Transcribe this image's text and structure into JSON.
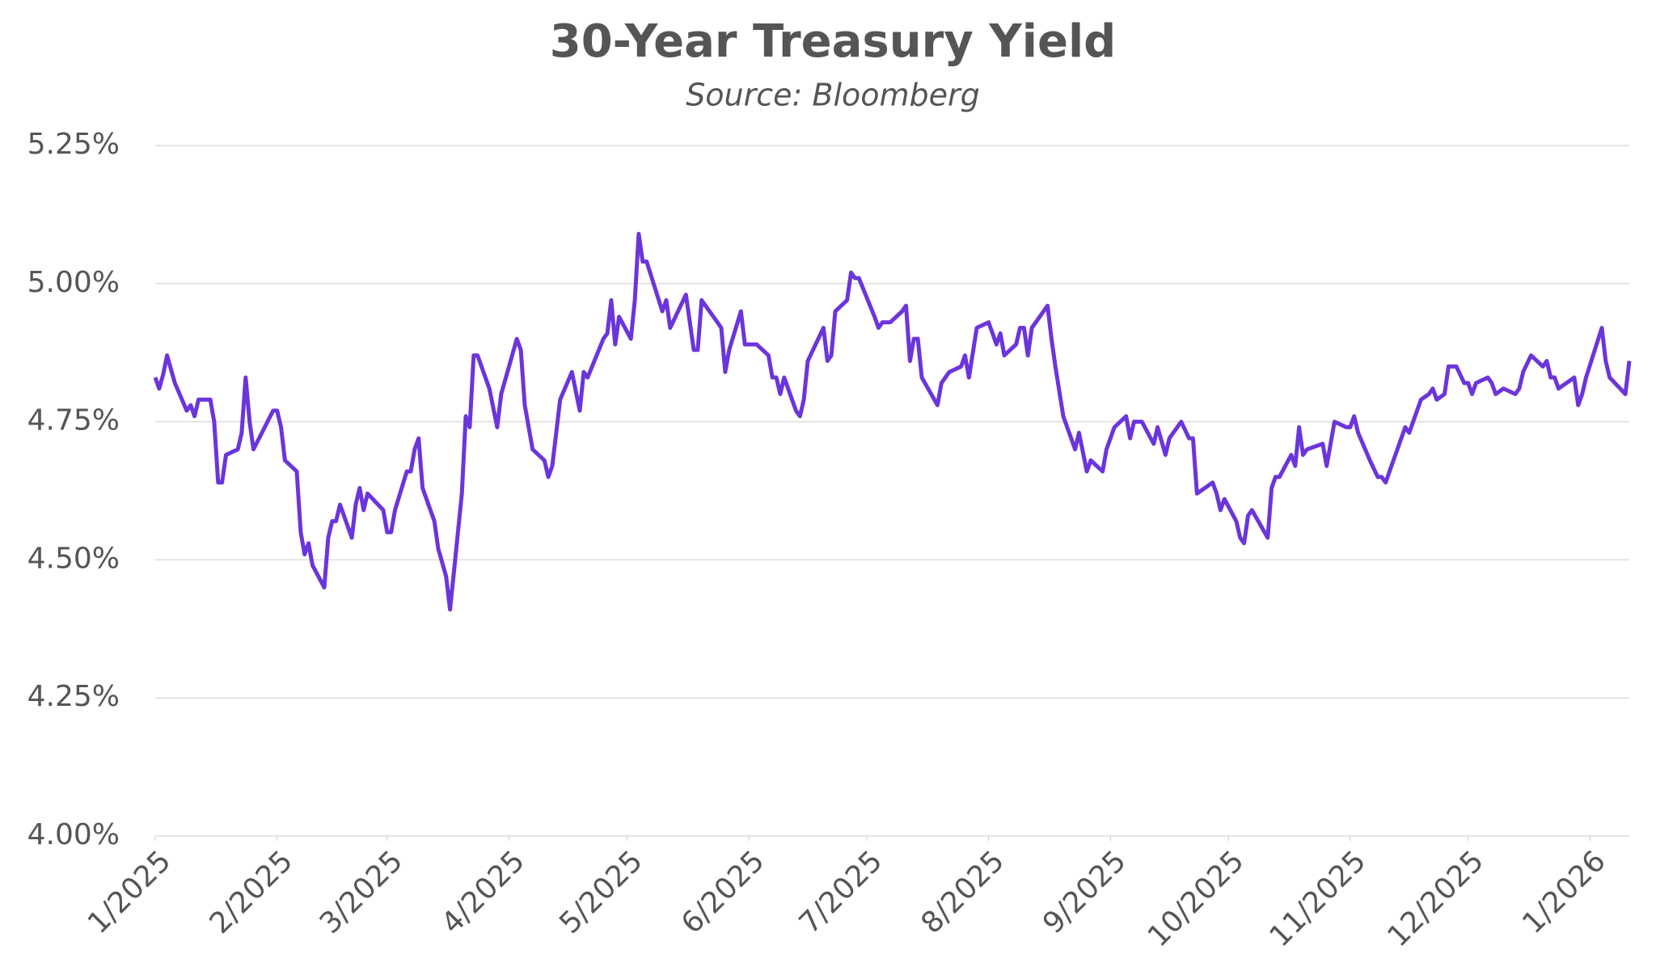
{
  "chart_data": {
    "type": "line",
    "title": "30-Year Treasury Yield",
    "subtitle": "Source: Bloomberg",
    "x": [
      0,
      1,
      2,
      3,
      5,
      8,
      9,
      10,
      11,
      14,
      15,
      16,
      17,
      18,
      21,
      22,
      23,
      24,
      25,
      30,
      31,
      32,
      33,
      36,
      37,
      38,
      39,
      40,
      43,
      44,
      45,
      46,
      47,
      50,
      51,
      52,
      53,
      54,
      58,
      59,
      60,
      61,
      64,
      65,
      66,
      67,
      68,
      71,
      72,
      74,
      75,
      76,
      78,
      79,
      80,
      81,
      82,
      85,
      87,
      88,
      92,
      93,
      94,
      96,
      99,
      100,
      101,
      102,
      103,
      106,
      108,
      109,
      110,
      114,
      115,
      116,
      117,
      118,
      121,
      122,
      123,
      124,
      125,
      129,
      130,
      131,
      135,
      137,
      138,
      139,
      143,
      144,
      145,
      146,
      149,
      150,
      153,
      156,
      157,
      158,
      159,
      160,
      163,
      164,
      165,
      166,
      170,
      171,
      172,
      173,
      176,
      177,
      178,
      179,
      183,
      184,
      185,
      187,
      190,
      191,
      192,
      193,
      194,
      195,
      199,
      200,
      201,
      202,
      205,
      206,
      207,
      209,
      212,
      213,
      214,
      215,
      216,
      219,
      220,
      221,
      222,
      223,
      227,
      228,
      229,
      231,
      233,
      234,
      235,
      237,
      238,
      241,
      242,
      244,
      247,
      248,
      249,
      251,
      254,
      255,
      257,
      258,
      261,
      263,
      264,
      265,
      269,
      270,
      271,
      272,
      275,
      276,
      277,
      278,
      279,
      283,
      284,
      285,
      286,
      289,
      290,
      291,
      292,
      293,
      297,
      298,
      300,
      303,
      304,
      305,
      306,
      309,
      311,
      312,
      313,
      317,
      318,
      319,
      322,
      324,
      325,
      326,
      328,
      329,
      331,
      333,
      334,
      335,
      336,
      339,
      340,
      341,
      343,
      346,
      347,
      348,
      350,
      353,
      354,
      355,
      356,
      357,
      361,
      362,
      363,
      364,
      368,
      369,
      370,
      374,
      375
    ],
    "series": [
      {
        "name": "30-Year Treasury Yield",
        "color": "#6b35dc",
        "values": [
          4.83,
          4.81,
          4.835,
          4.87,
          4.82,
          4.77,
          4.78,
          4.76,
          4.79,
          4.79,
          4.75,
          4.64,
          4.64,
          4.69,
          4.7,
          4.73,
          4.83,
          4.75,
          4.7,
          4.77,
          4.77,
          4.74,
          4.68,
          4.66,
          4.55,
          4.51,
          4.53,
          4.49,
          4.45,
          4.54,
          4.57,
          4.57,
          4.6,
          4.54,
          4.6,
          4.63,
          4.59,
          4.62,
          4.59,
          4.55,
          4.55,
          4.59,
          4.66,
          4.66,
          4.7,
          4.72,
          4.63,
          4.57,
          4.52,
          4.47,
          4.41,
          4.48,
          4.62,
          4.76,
          4.74,
          4.87,
          4.87,
          4.81,
          4.74,
          4.8,
          4.9,
          4.88,
          4.78,
          4.7,
          4.68,
          4.65,
          4.67,
          4.73,
          4.79,
          4.84,
          4.77,
          4.84,
          4.83,
          4.9,
          4.91,
          4.97,
          4.89,
          4.94,
          4.9,
          4.97,
          5.09,
          5.04,
          5.04,
          4.95,
          4.97,
          4.92,
          4.98,
          4.88,
          4.88,
          4.97,
          4.93,
          4.92,
          4.84,
          4.88,
          4.95,
          4.89,
          4.89,
          4.87,
          4.83,
          4.83,
          4.8,
          4.83,
          4.77,
          4.76,
          4.79,
          4.86,
          4.92,
          4.86,
          4.87,
          4.95,
          4.97,
          5.02,
          5.01,
          5.01,
          4.94,
          4.92,
          4.93,
          4.93,
          4.95,
          4.96,
          4.86,
          4.9,
          4.9,
          4.83,
          4.78,
          4.82,
          4.83,
          4.84,
          4.85,
          4.87,
          4.83,
          4.92,
          4.93,
          4.91,
          4.89,
          4.91,
          4.87,
          4.89,
          4.92,
          4.92,
          4.87,
          4.92,
          4.96,
          4.9,
          4.85,
          4.76,
          4.72,
          4.7,
          4.73,
          4.66,
          4.68,
          4.66,
          4.7,
          4.74,
          4.76,
          4.72,
          4.75,
          4.75,
          4.71,
          4.74,
          4.69,
          4.72,
          4.75,
          4.72,
          4.72,
          4.62,
          4.64,
          4.62,
          4.59,
          4.61,
          4.57,
          4.54,
          4.53,
          4.58,
          4.59,
          4.54,
          4.63,
          4.65,
          4.65,
          4.69,
          4.67,
          4.74,
          4.69,
          4.7,
          4.71,
          4.67,
          4.75,
          4.74,
          4.74,
          4.76,
          4.73,
          4.68,
          4.65,
          4.65,
          4.64,
          4.72,
          4.74,
          4.73,
          4.79,
          4.8,
          4.81,
          4.79,
          4.8,
          4.85,
          4.85,
          4.82,
          4.82,
          4.8,
          4.82,
          4.83,
          4.82,
          4.8,
          4.81,
          4.8,
          4.81,
          4.84,
          4.87,
          4.85,
          4.86,
          4.83,
          4.83,
          4.81,
          4.83,
          4.78,
          4.8,
          4.83,
          4.92,
          4.86,
          4.83,
          4.8,
          4.86
        ]
      }
    ],
    "xlim": [
      0,
      375
    ],
    "xticks": [
      {
        "value": 0,
        "label": "1/2025"
      },
      {
        "value": 31,
        "label": "2/2025"
      },
      {
        "value": 59,
        "label": "3/2025"
      },
      {
        "value": 90,
        "label": "4/2025"
      },
      {
        "value": 120,
        "label": "5/2025"
      },
      {
        "value": 151,
        "label": "6/2025"
      },
      {
        "value": 181,
        "label": "7/2025"
      },
      {
        "value": 212,
        "label": "8/2025"
      },
      {
        "value": 243,
        "label": "9/2025"
      },
      {
        "value": 273,
        "label": "10/2025"
      },
      {
        "value": 304,
        "label": "11/2025"
      },
      {
        "value": 334,
        "label": "12/2025"
      },
      {
        "value": 365,
        "label": "1/2026"
      }
    ],
    "ylim": [
      4.0,
      5.25
    ],
    "yticks": [
      {
        "value": 4.0,
        "label": "4.00%"
      },
      {
        "value": 4.25,
        "label": "4.25%"
      },
      {
        "value": 4.5,
        "label": "4.50%"
      },
      {
        "value": 4.75,
        "label": "4.75%"
      },
      {
        "value": 5.0,
        "label": "5.00%"
      },
      {
        "value": 5.25,
        "label": "5.25%"
      }
    ],
    "grid": true
  }
}
